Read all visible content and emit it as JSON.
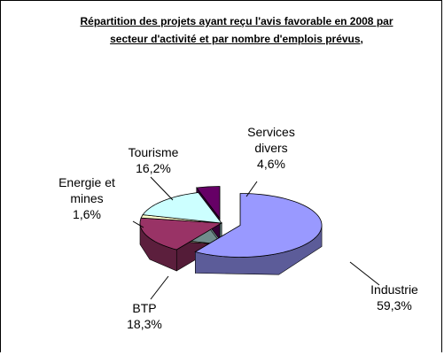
{
  "chart_data": {
    "type": "pie",
    "title": "Répartition des projets ayant reçu l'avis favorable en 2008 par secteur d'activité et par nombre d'emplois prévus,",
    "categories": [
      "Industrie",
      "BTP",
      "Energie et mines",
      "Tourisme",
      "Services divers"
    ],
    "values": [
      59.3,
      18.3,
      1.6,
      16.2,
      4.6
    ],
    "value_labels": [
      "59,3%",
      "18,3%",
      "1,6%",
      "16,2%",
      "4,6%"
    ],
    "colors": [
      "#9999ff",
      "#993366",
      "#ffffcc",
      "#ccffff",
      "#660066"
    ]
  }
}
